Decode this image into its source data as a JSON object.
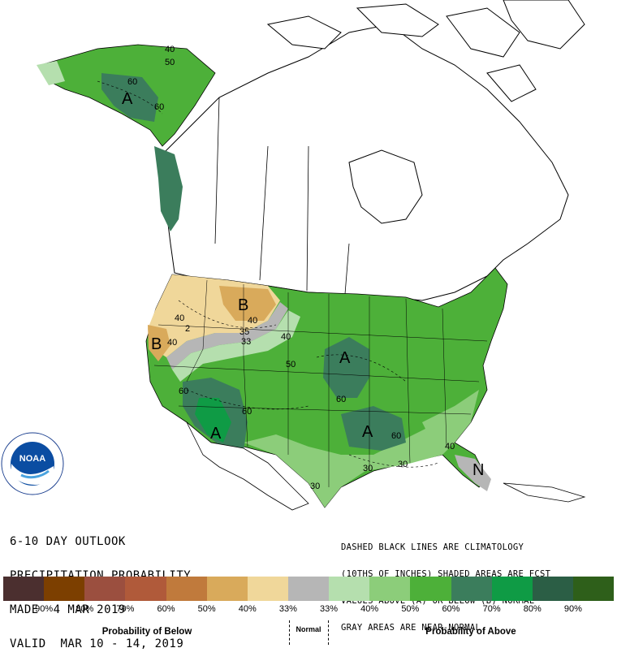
{
  "title_lines": [
    "6-10 DAY OUTLOOK",
    "PRECIPITATION PROBABILITY",
    "MADE  4 MAR 2019",
    "VALID  MAR 10 - 14, 2019"
  ],
  "note_lines": [
    "DASHED BLACK LINES ARE CLIMATOLOGY",
    "(10THS OF INCHES) SHADED AREAS ARE FCST",
    "VALUES ABOVE (A) OR BELOW (B) NORMAL",
    "GRAY AREAS ARE NEAR-NORMAL"
  ],
  "logo_text": "NOAA",
  "legend": {
    "swatches": [
      {
        "color": "#4b2f2f"
      },
      {
        "color": "#7c3f00"
      },
      {
        "color": "#9b4f3f"
      },
      {
        "color": "#b05a3a"
      },
      {
        "color": "#c07a3c"
      },
      {
        "color": "#d9aa5b"
      },
      {
        "color": "#f0d79a"
      },
      {
        "color": "#b6b6b6"
      },
      {
        "color": "#b5dfae"
      },
      {
        "color": "#8ccd7a"
      },
      {
        "color": "#4db039"
      },
      {
        "color": "#3b7d5c"
      },
      {
        "color": "#0f9b45"
      },
      {
        "color": "#2b5e45"
      },
      {
        "color": "#2e5f1a"
      }
    ],
    "labels": [
      "90%",
      "80%",
      "70%",
      "60%",
      "50%",
      "40%",
      "33%",
      "33%",
      "40%",
      "50%",
      "60%",
      "70%",
      "80%",
      "90%"
    ],
    "below_label": "Probability of Below",
    "normal_label": "Normal",
    "above_label": "Probability of Above"
  },
  "map_labels": {
    "regions": [
      "A",
      "B",
      "B",
      "A",
      "A",
      "A",
      "N"
    ],
    "contours": [
      "40",
      "50",
      "60",
      "60",
      "40",
      "35",
      "33",
      "40",
      "40",
      "50",
      "60",
      "60",
      "60",
      "60",
      "40",
      "30",
      "30",
      "30",
      "40",
      "2"
    ]
  }
}
